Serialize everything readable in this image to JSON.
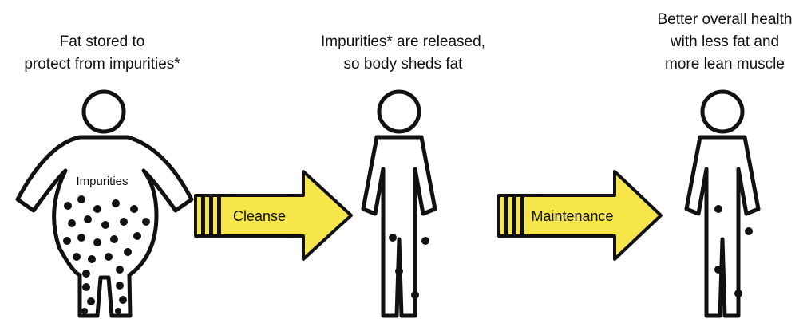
{
  "stages": [
    {
      "caption": [
        "Fat stored to",
        "protect from impurities*"
      ],
      "body_label": "Impurities"
    },
    {
      "caption": [
        "Impurities* are released,",
        "so body sheds fat"
      ]
    },
    {
      "caption": [
        "Better overall health",
        "with less fat and",
        "more lean muscle"
      ]
    }
  ],
  "arrows": [
    {
      "label": "Cleanse"
    },
    {
      "label": "Maintenance"
    }
  ]
}
